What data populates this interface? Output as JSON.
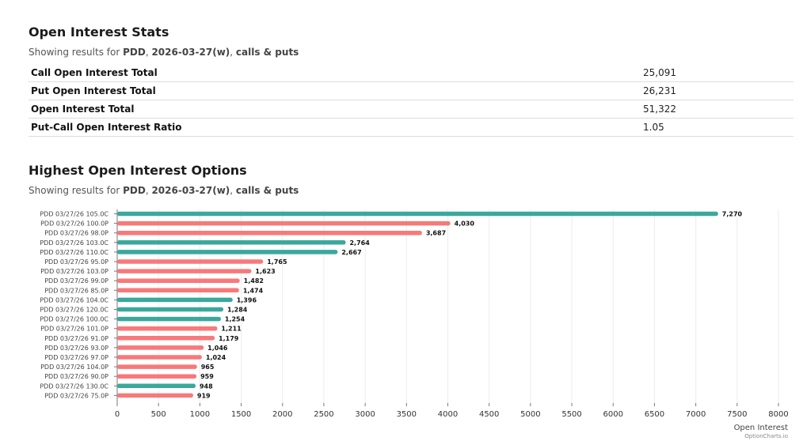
{
  "stats": {
    "title": "Open Interest Stats",
    "subtitle_prefix": "Showing results for ",
    "ticker": "PDD",
    "sep1": ", ",
    "expiry": "2026-03-27(w)",
    "sep2": ", ",
    "types": "calls & puts",
    "rows": [
      {
        "label": "Call Open Interest Total",
        "value": "25,091"
      },
      {
        "label": "Put Open Interest Total",
        "value": "26,231"
      },
      {
        "label": "Open Interest Total",
        "value": "51,322"
      },
      {
        "label": "Put-Call Open Interest Ratio",
        "value": "1.05"
      }
    ]
  },
  "highest": {
    "title": "Highest Open Interest Options",
    "subtitle_prefix": "Showing results for ",
    "ticker": "PDD",
    "sep1": ", ",
    "expiry": "2026-03-27(w)",
    "sep2": ", ",
    "types": "calls & puts"
  },
  "colors": {
    "call": "#3aa89c",
    "put": "#f8797a",
    "grid": "#ececec",
    "axis": "#777777"
  },
  "chart_data": {
    "type": "bar",
    "orientation": "horizontal",
    "categories": [
      "PDD 03/27/26 105.0C",
      "PDD 03/27/26 100.0P",
      "PDD 03/27/26 98.0P",
      "PDD 03/27/26 103.0C",
      "PDD 03/27/26 110.0C",
      "PDD 03/27/26 95.0P",
      "PDD 03/27/26 103.0P",
      "PDD 03/27/26 99.0P",
      "PDD 03/27/26 85.0P",
      "PDD 03/27/26 104.0C",
      "PDD 03/27/26 120.0C",
      "PDD 03/27/26 100.0C",
      "PDD 03/27/26 101.0P",
      "PDD 03/27/26 91.0P",
      "PDD 03/27/26 93.0P",
      "PDD 03/27/26 97.0P",
      "PDD 03/27/26 104.0P",
      "PDD 03/27/26 90.0P",
      "PDD 03/27/26 130.0C",
      "PDD 03/27/26 75.0P"
    ],
    "values": [
      7270,
      4030,
      3687,
      2764,
      2667,
      1765,
      1623,
      1482,
      1474,
      1396,
      1284,
      1254,
      1211,
      1179,
      1046,
      1024,
      965,
      959,
      948,
      919
    ],
    "value_labels": [
      "7,270",
      "4,030",
      "3,687",
      "2,764",
      "2,667",
      "1,765",
      "1,623",
      "1,482",
      "1,474",
      "1,396",
      "1,284",
      "1,254",
      "1,211",
      "1,179",
      "1,046",
      "1,024",
      "965",
      "959",
      "948",
      "919"
    ],
    "kinds": [
      "call",
      "put",
      "put",
      "call",
      "call",
      "put",
      "put",
      "put",
      "put",
      "call",
      "call",
      "call",
      "put",
      "put",
      "put",
      "put",
      "put",
      "put",
      "call",
      "put"
    ],
    "xticks": [
      0,
      500,
      1000,
      1500,
      2000,
      2500,
      3000,
      3500,
      4000,
      4500,
      5000,
      5500,
      6000,
      6500,
      7000,
      7500,
      8000
    ],
    "xlim": [
      0,
      8000
    ],
    "xlabel": "Open Interest",
    "credit": "OptionCharts.io",
    "grid": true
  }
}
